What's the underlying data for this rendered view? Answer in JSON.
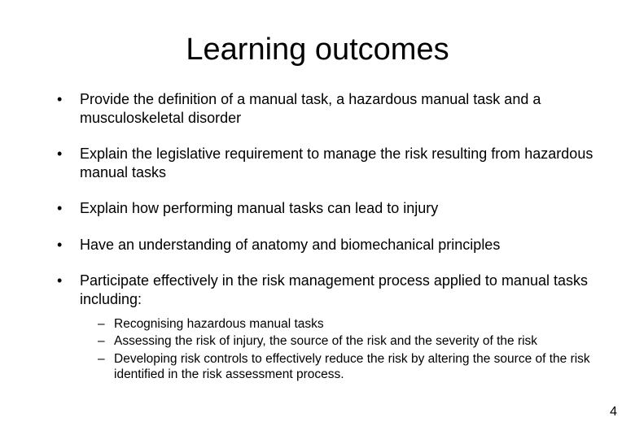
{
  "title": "Learning outcomes",
  "bullets": [
    {
      "text": "Provide the definition of a manual task, a hazardous manual task and a musculoskeletal disorder"
    },
    {
      "text": "Explain the legislative requirement to manage the risk resulting from hazardous manual tasks"
    },
    {
      "text": "Explain how performing manual tasks can lead to injury"
    },
    {
      "text": "Have an understanding of anatomy and biomechanical principles"
    },
    {
      "text": "Participate effectively in the risk management process applied to manual tasks including:",
      "sub": [
        "Recognising hazardous manual tasks",
        "Assessing the risk of injury, the source of the risk and the severity of the risk",
        "Developing risk controls to effectively reduce the risk by altering the source of the risk identified in the risk assessment process."
      ]
    }
  ],
  "page_number": "4",
  "colors": {
    "background": "#ffffff",
    "text": "#000000"
  },
  "fonts": {
    "title_size": 38,
    "body_size": 18,
    "sub_size": 15.5,
    "family": "Arial"
  }
}
